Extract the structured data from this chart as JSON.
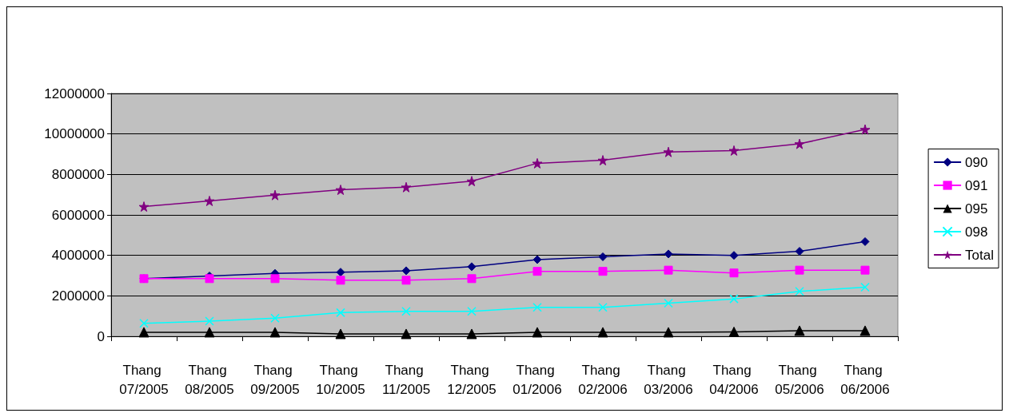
{
  "chart_data": {
    "type": "line",
    "categories": [
      "Thang 07/2005",
      "Thang 08/2005",
      "Thang 09/2005",
      "Thang 10/2005",
      "Thang 11/2005",
      "Thang 12/2005",
      "Thang 01/2006",
      "Thang 02/2006",
      "Thang 03/2006",
      "Thang 04/2006",
      "Thang 05/2006",
      "Thang 06/2006"
    ],
    "series": [
      {
        "name": "090",
        "color": "#000080",
        "marker": "diamond",
        "values": [
          2850000,
          2980000,
          3110000,
          3170000,
          3240000,
          3440000,
          3790000,
          3930000,
          4070000,
          4000000,
          4200000,
          4680000
        ]
      },
      {
        "name": "091",
        "color": "#ff00ff",
        "marker": "square",
        "values": [
          2850000,
          2850000,
          2850000,
          2770000,
          2770000,
          2850000,
          3210000,
          3210000,
          3270000,
          3130000,
          3270000,
          3270000
        ]
      },
      {
        "name": "095",
        "color": "#000000",
        "marker": "triangle",
        "values": [
          200000,
          200000,
          200000,
          120000,
          120000,
          120000,
          200000,
          200000,
          200000,
          220000,
          280000,
          280000
        ]
      },
      {
        "name": "098",
        "color": "#00ffff",
        "marker": "cross",
        "values": [
          640000,
          750000,
          900000,
          1170000,
          1230000,
          1230000,
          1430000,
          1430000,
          1640000,
          1850000,
          2220000,
          2430000
        ]
      },
      {
        "name": "Total",
        "color": "#800080",
        "marker": "star",
        "values": [
          6410000,
          6690000,
          6980000,
          7240000,
          7370000,
          7670000,
          8550000,
          8700000,
          9110000,
          9180000,
          9510000,
          10220000
        ]
      }
    ],
    "ylim": [
      0,
      12000000
    ],
    "yticks": [
      0,
      2000000,
      4000000,
      6000000,
      8000000,
      10000000,
      12000000
    ],
    "grid": "y",
    "legend": "right",
    "line_style": "solid"
  }
}
